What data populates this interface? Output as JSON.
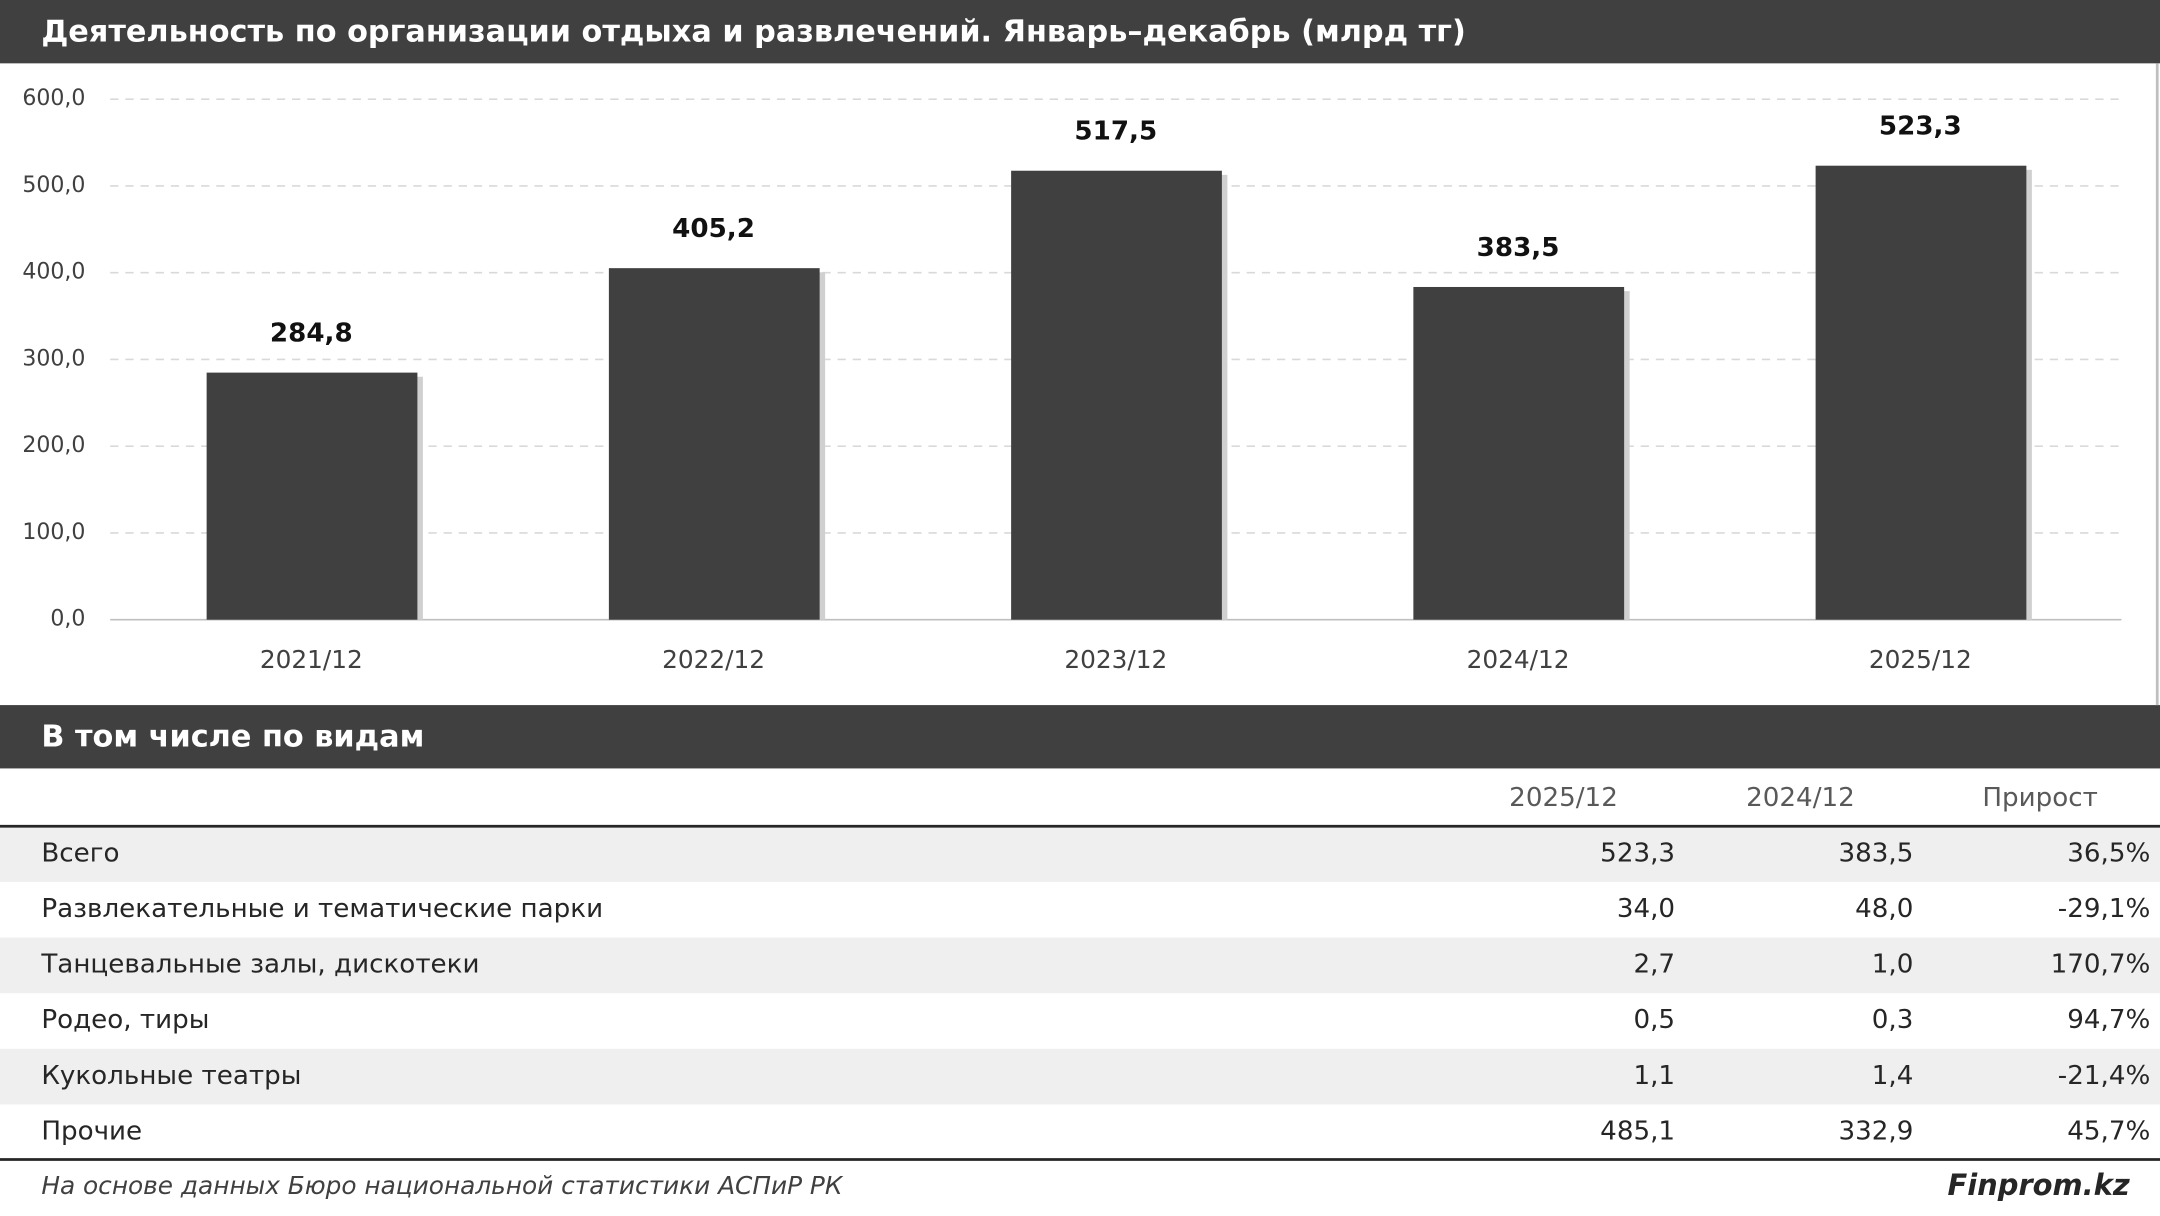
{
  "chart_data": {
    "type": "bar",
    "title": "Деятельность по организации отдыха и развлечений. Январь–декабрь (млрд тг)",
    "categories": [
      "2021/12",
      "2022/12",
      "2023/12",
      "2024/12",
      "2025/12"
    ],
    "values": [
      284.8,
      405.2,
      517.5,
      383.5,
      523.3
    ],
    "value_labels": [
      "284,8",
      "405,2",
      "517,5",
      "383,5",
      "523,3"
    ],
    "color": "#404040",
    "ylim": [
      0,
      600
    ],
    "yticks": [
      {
        "value": 0,
        "label": "0,0"
      },
      {
        "value": 100,
        "label": "100,0"
      },
      {
        "value": 200,
        "label": "200,0"
      },
      {
        "value": 300,
        "label": "300,0"
      },
      {
        "value": 400,
        "label": "400,0"
      },
      {
        "value": 500,
        "label": "500,0"
      },
      {
        "value": 600,
        "label": "600,0"
      }
    ],
    "grid": true
  },
  "table": {
    "title": "В том числе по видам",
    "columns": [
      "2025/12",
      "2024/12",
      "Прирост"
    ],
    "rows": [
      [
        "Всего",
        "523,3",
        "383,5",
        "36,5%"
      ],
      [
        "Развлекательные и тематические парки",
        "34,0",
        "48,0",
        "-29,1%"
      ],
      [
        "Танцевальные залы, дискотеки",
        "2,7",
        "1,0",
        "170,7%"
      ],
      [
        "Родео, тиры",
        "0,5",
        "0,3",
        "94,7%"
      ],
      [
        "Кукольные театры",
        "1,1",
        "1,4",
        "-21,4%"
      ],
      [
        "Прочие",
        "485,1",
        "332,9",
        "45,7%"
      ]
    ]
  },
  "footer": {
    "source": "На основе данных Бюро национальной статистики АСПиР РК",
    "brand": "Finprom.kz"
  }
}
